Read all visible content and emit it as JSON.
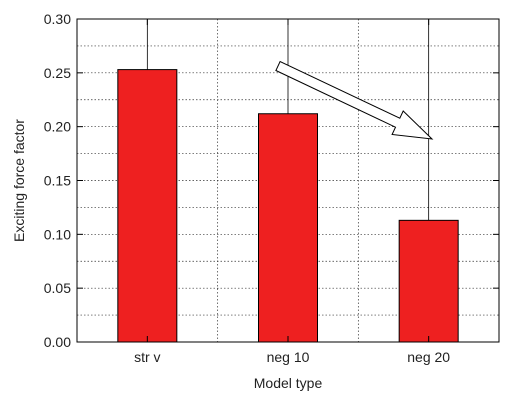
{
  "chart_data": {
    "type": "bar",
    "categories": [
      "str v",
      "neg 10",
      "neg 20"
    ],
    "values": [
      0.253,
      0.212,
      0.113
    ],
    "xlabel": "Model type",
    "ylabel": "Exciting force factor",
    "ylim": [
      0,
      0.3
    ],
    "yticks": [
      "0.00",
      "0.05",
      "0.10",
      "0.15",
      "0.20",
      "0.25",
      "0.30"
    ],
    "grid": true,
    "bar_color": "#ee2020",
    "annotation": "hollow arrow pointing down-right, indicating a decreasing trend"
  }
}
